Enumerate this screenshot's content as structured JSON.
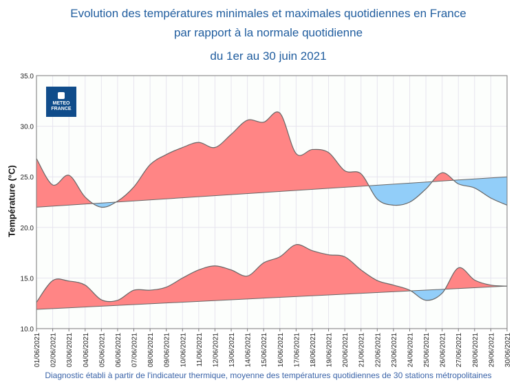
{
  "title_lines": [
    "Evolution des températures minimales et maximales quotidiennes en France",
    "par rapport à la normale quotidienne",
    "du 1er au 30 juin 2021"
  ],
  "footer": "Diagnostic établi à partir de l'indicateur thermique, moyenne des températures quotidiennes de 30 stations métropolitaines",
  "logo_text": [
    "METEO",
    "FRANCE"
  ],
  "colors": {
    "above": "#ff8585",
    "below": "#92cef9",
    "title": "#1f5c9e",
    "line": "#666666"
  },
  "chart_data": {
    "type": "area",
    "ylabel": "Température (°C)",
    "ylim": [
      10,
      35
    ],
    "yticks": [
      "10.0",
      "15.0",
      "20.0",
      "25.0",
      "30.0",
      "35.0"
    ],
    "grid": true,
    "categories": [
      "01/06/2021",
      "02/06/2021",
      "03/06/2021",
      "04/06/2021",
      "05/06/2021",
      "06/06/2021",
      "07/06/2021",
      "08/06/2021",
      "09/06/2021",
      "10/06/2021",
      "11/06/2021",
      "12/06/2021",
      "13/06/2021",
      "14/06/2021",
      "15/06/2021",
      "16/06/2021",
      "17/06/2021",
      "18/06/2021",
      "19/06/2021",
      "20/06/2021",
      "21/06/2021",
      "22/06/2021",
      "23/06/2021",
      "24/06/2021",
      "25/06/2021",
      "26/06/2021",
      "27/06/2021",
      "28/06/2021",
      "29/06/2021",
      "30/06/2021"
    ],
    "series": [
      {
        "key": "tmax",
        "values": [
          26.8,
          24.2,
          25.15,
          23.0,
          22.0,
          22.6,
          24.0,
          26.2,
          27.2,
          27.9,
          28.4,
          27.9,
          29.2,
          30.6,
          30.4,
          31.3,
          27.3,
          27.7,
          27.4,
          25.6,
          25.3,
          22.8,
          22.2,
          22.5,
          23.8,
          25.4,
          24.3,
          23.9,
          22.9,
          22.2
        ],
        "normal": [
          22.0,
          25.0
        ]
      },
      {
        "key": "tmin",
        "values": [
          12.6,
          14.75,
          14.7,
          14.3,
          12.85,
          12.8,
          13.8,
          13.8,
          14.1,
          15.0,
          15.8,
          16.2,
          15.8,
          15.2,
          16.5,
          17.1,
          18.3,
          17.7,
          17.3,
          17.1,
          15.8,
          14.75,
          14.3,
          13.8,
          12.8,
          13.5,
          16.0,
          14.8,
          14.3,
          14.2
        ],
        "normal": [
          11.9,
          14.2
        ]
      }
    ]
  }
}
